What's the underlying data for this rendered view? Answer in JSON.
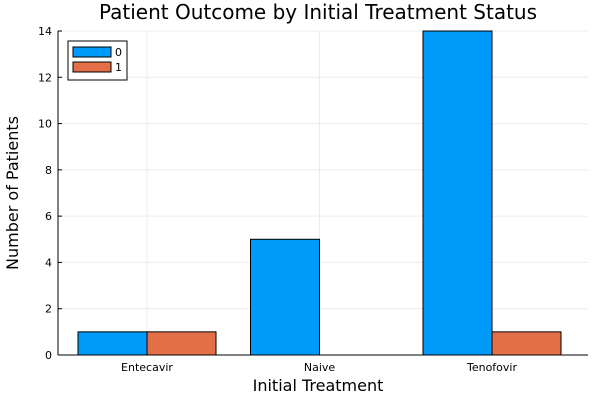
{
  "chart_data": {
    "type": "bar",
    "title": "Patient Outcome by Initial Treatment Status",
    "xlabel": "Initial Treatment",
    "ylabel": "Number of Patients",
    "categories": [
      "Entecavir",
      "Naive",
      "Tenofovir"
    ],
    "series": [
      {
        "name": "0",
        "values": [
          1,
          5,
          14
        ],
        "color": "#009AFA"
      },
      {
        "name": "1",
        "values": [
          1,
          0,
          1
        ],
        "color": "#E26F46"
      }
    ],
    "ylim": [
      0,
      14
    ],
    "yticks": [
      0,
      2,
      4,
      6,
      8,
      10,
      12,
      14
    ],
    "grid": true,
    "legend_position": "top-left"
  }
}
